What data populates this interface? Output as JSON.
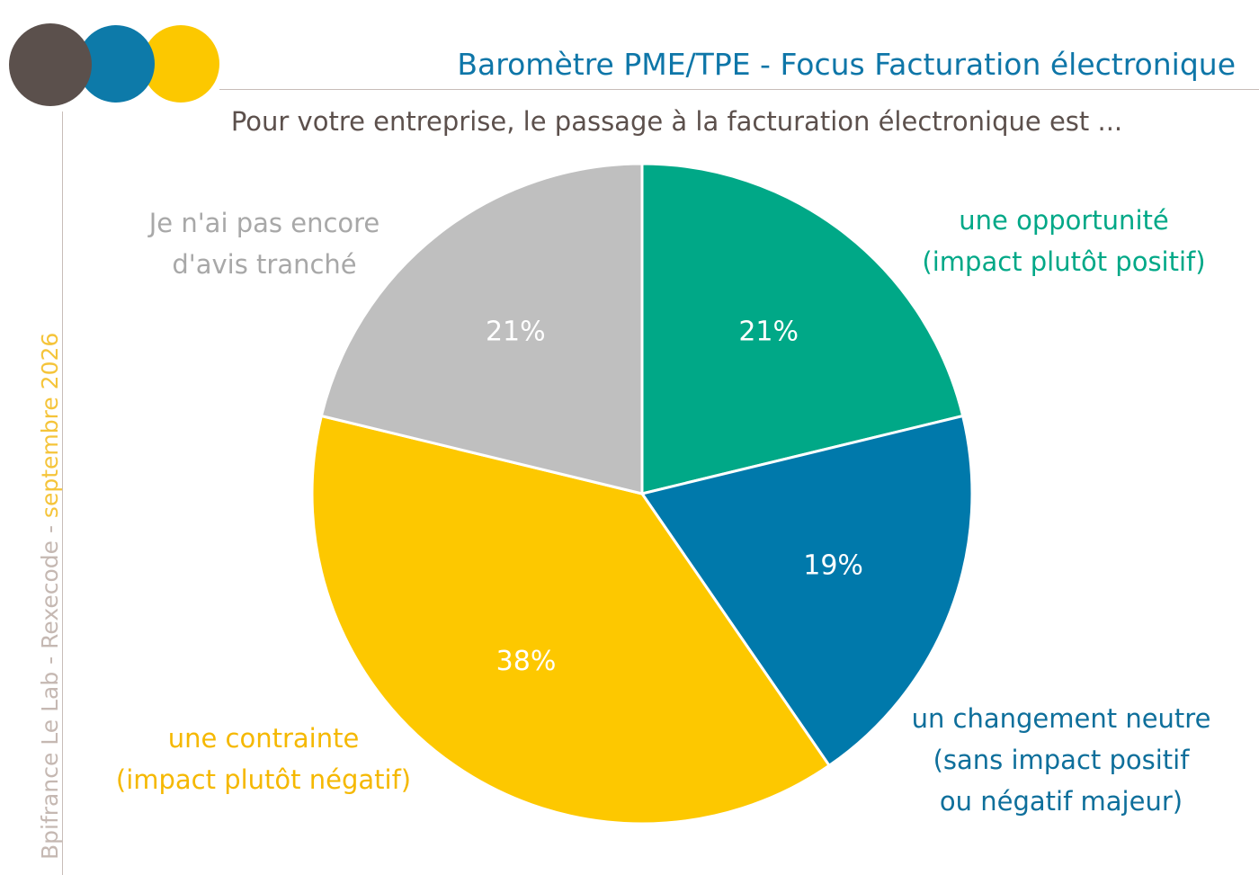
{
  "branding": {
    "circle_colors": [
      "#5b504c",
      "#0d7aa9",
      "#fcc800"
    ]
  },
  "header": {
    "title": "Baromètre PME/TPE - Focus Facturation électronique",
    "title_color": "#0e76a8"
  },
  "side_credit": {
    "source": "Bpifrance Le Lab - Rexecode - ",
    "date": "septembre 2026",
    "source_color": "#c5b8b2",
    "date_color": "#f5c43a"
  },
  "chart_data": {
    "type": "pie",
    "title": "Pour votre entreprise, le passage à la facturation électronique est ...",
    "slices": [
      {
        "value": 21,
        "value_label": "21%",
        "label_lines": [
          "une opportunité",
          "(impact plutôt positif)"
        ],
        "color": "#00a887",
        "label_color": "#00a887"
      },
      {
        "value": 19,
        "value_label": "19%",
        "label_lines": [
          "un changement neutre",
          "(sans impact positif",
          "ou négatif majeur)"
        ],
        "color": "#0079ab",
        "label_color": "#0e6f9b"
      },
      {
        "value": 38,
        "value_label": "38%",
        "label_lines": [
          "une contrainte",
          "(impact plutôt négatif)"
        ],
        "color": "#fdc800",
        "label_color": "#f5b800"
      },
      {
        "value": 21,
        "value_label": "21%",
        "label_lines": [
          "Je n'ai pas encore",
          "d'avis tranché"
        ],
        "color": "#bfbfbf",
        "label_color": "#a8a8a8"
      }
    ],
    "start_angle": "12 o'clock",
    "direction": "clockwise",
    "value_label_color": "#ffffff"
  }
}
